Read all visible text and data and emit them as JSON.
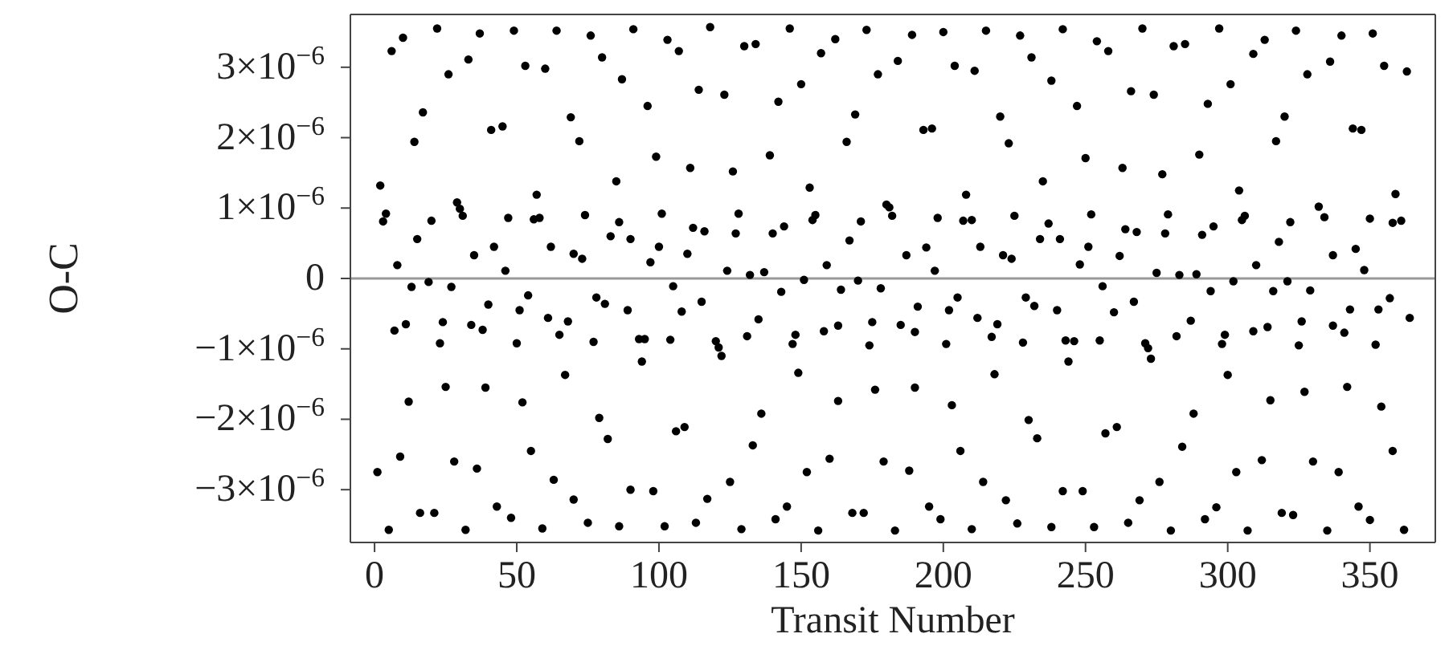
{
  "chart_data": {
    "type": "scatter",
    "xlabel": "Transit Number",
    "ylabel": "O-C",
    "color": "#000000",
    "marker": "circle",
    "xlim": [
      -8.5,
      373
    ],
    "xticks": [
      0,
      50,
      100,
      150,
      200,
      250,
      300,
      350
    ],
    "ylim": [
      -3.75e-06,
      3.75e-06
    ],
    "yticks": [
      {
        "value": -3e-06,
        "label": "−3×10$^{−6}$"
      },
      {
        "value": -2e-06,
        "label": "−2×10$^{−6}$"
      },
      {
        "value": -1e-06,
        "label": "−1×10$^{−6}$"
      },
      0,
      {
        "value": 1e-06,
        "label": "1×10$^{−6}$"
      },
      {
        "value": 2e-06,
        "label": "2×10$^{−6}$"
      },
      {
        "value": 3e-06,
        "label": "3×10$^{−6}$"
      }
    ],
    "ref_lines": [
      {
        "axis": "y",
        "value": 0,
        "color": "#999999"
      }
    ],
    "x": [
      22,
      37,
      49,
      64,
      76,
      91,
      103,
      107,
      118,
      10,
      6,
      33,
      26,
      53,
      60,
      80,
      87,
      114,
      96,
      17,
      14,
      41,
      45,
      69,
      72,
      99,
      111,
      2,
      85,
      57,
      4,
      3,
      29,
      30,
      31,
      20,
      47,
      56,
      58,
      74,
      86,
      101,
      112,
      116,
      15,
      42,
      62,
      83,
      90,
      100,
      110,
      35,
      70,
      73,
      97,
      8,
      46,
      13,
      19,
      27,
      54,
      78,
      81,
      89,
      105,
      115,
      40,
      51,
      108,
      7,
      11,
      24,
      34,
      38,
      61,
      68,
      65,
      23,
      50,
      77,
      93,
      95,
      104,
      94,
      67,
      25,
      39,
      12,
      52,
      79,
      82,
      106,
      109,
      9,
      55,
      1,
      28,
      36,
      63,
      90,
      98,
      117,
      70,
      43,
      16,
      21,
      48,
      5,
      32,
      59,
      75,
      86,
      102,
      113,
      146,
      130,
      134,
      162,
      157,
      173,
      189,
      200,
      215,
      227,
      242,
      231,
      184,
      177,
      204,
      211,
      238,
      150,
      123,
      142,
      169,
      193,
      196,
      220,
      166,
      223,
      139,
      126,
      235,
      153,
      208,
      180,
      181,
      182,
      128,
      155,
      154,
      171,
      198,
      207,
      210,
      225,
      237,
      127,
      140,
      144,
      167,
      187,
      194,
      213,
      221,
      224,
      234,
      241,
      159,
      124,
      132,
      137,
      197,
      151,
      170,
      143,
      164,
      178,
      205,
      191,
      202,
      229,
      232,
      240,
      135,
      163,
      175,
      185,
      212,
      219,
      131,
      148,
      158,
      190,
      217,
      120,
      121,
      122,
      147,
      174,
      201,
      228,
      243,
      244,
      149,
      176,
      190,
      218,
      163,
      203,
      136,
      230,
      233,
      133,
      206,
      160,
      179,
      152,
      188,
      214,
      125,
      242,
      222,
      145,
      195,
      168,
      172,
      141,
      199,
      129,
      156,
      183,
      210,
      226,
      238,
      254,
      258,
      270,
      281,
      285,
      297,
      313,
      309,
      324,
      340,
      351,
      355,
      363,
      336,
      328,
      301,
      266,
      274,
      247,
      293,
      320,
      317,
      344,
      347,
      290,
      250,
      263,
      277,
      304,
      359,
      332,
      334,
      306,
      305,
      322,
      350,
      358,
      361,
      252,
      279,
      264,
      268,
      278,
      291,
      295,
      318,
      251,
      262,
      248,
      310,
      337,
      345,
      348,
      275,
      283,
      289,
      256,
      294,
      302,
      321,
      316,
      329,
      267,
      260,
      287,
      282,
      271,
      272,
      273,
      255,
      246,
      299,
      298,
      309,
      314,
      326,
      325,
      337,
      341,
      343,
      353,
      357,
      364,
      352,
      300,
      315,
      327,
      342,
      354,
      288,
      257,
      261,
      358,
      284,
      312,
      330,
      339,
      303,
      276,
      249,
      269,
      296,
      346,
      319,
      323,
      265,
      292,
      350,
      253,
      280,
      307,
      335,
      362
    ],
    "values": [
      3.55e-06,
      3.48e-06,
      3.52e-06,
      3.52e-06,
      3.45e-06,
      3.54e-06,
      3.39e-06,
      3.23e-06,
      3.57e-06,
      3.42e-06,
      3.23e-06,
      3.11e-06,
      2.9e-06,
      3.02e-06,
      2.98e-06,
      3.14e-06,
      2.83e-06,
      2.68e-06,
      2.45e-06,
      2.36e-06,
      1.94e-06,
      2.11e-06,
      2.16e-06,
      2.29e-06,
      1.95e-06,
      1.73e-06,
      1.57e-06,
      1.32e-06,
      1.38e-06,
      1.19e-06,
      9.2e-07,
      8.1e-07,
      1.08e-06,
      9.9e-07,
      8.9e-07,
      8.2e-07,
      8.6e-07,
      8.4e-07,
      8.6e-07,
      9e-07,
      8e-07,
      9.2e-07,
      7.2e-07,
      6.7e-07,
      5.6e-07,
      4.5e-07,
      4.5e-07,
      6e-07,
      5.6e-07,
      4.5e-07,
      3.5e-07,
      3.3e-07,
      3.5e-07,
      2.8e-07,
      2.3e-07,
      1.9e-07,
      1.1e-07,
      -1.2e-07,
      -5e-08,
      -1.2e-07,
      -2.4e-07,
      -2.7e-07,
      -3.6e-07,
      -4.5e-07,
      -1.1e-07,
      -3.3e-07,
      -3.7e-07,
      -4.5e-07,
      -4.7e-07,
      -7.4e-07,
      -6.5e-07,
      -6.2e-07,
      -6.6e-07,
      -7.3e-07,
      -5.6e-07,
      -6.1e-07,
      -8e-07,
      -9.2e-07,
      -9.2e-07,
      -9e-07,
      -8.6e-07,
      -8.6e-07,
      -8.7e-07,
      -1.18e-06,
      -1.37e-06,
      -1.54e-06,
      -1.55e-06,
      -1.75e-06,
      -1.76e-06,
      -1.98e-06,
      -2.28e-06,
      -2.17e-06,
      -2.11e-06,
      -2.53e-06,
      -2.45e-06,
      -2.75e-06,
      -2.6e-06,
      -2.7e-06,
      -2.86e-06,
      -3e-06,
      -3.02e-06,
      -3.13e-06,
      -3.14e-06,
      -3.24e-06,
      -3.33e-06,
      -3.33e-06,
      -3.4e-06,
      -3.57e-06,
      -3.57e-06,
      -3.55e-06,
      -3.47e-06,
      -3.52e-06,
      -3.52e-06,
      -3.47e-06,
      3.55e-06,
      3.3e-06,
      3.33e-06,
      3.4e-06,
      3.2e-06,
      3.53e-06,
      3.46e-06,
      3.5e-06,
      3.52e-06,
      3.45e-06,
      3.54e-06,
      3.14e-06,
      3.09e-06,
      2.9e-06,
      3.02e-06,
      2.95e-06,
      2.81e-06,
      2.76e-06,
      2.61e-06,
      2.51e-06,
      2.33e-06,
      2.11e-06,
      2.13e-06,
      2.3e-06,
      1.94e-06,
      1.92e-06,
      1.75e-06,
      1.52e-06,
      1.38e-06,
      1.29e-06,
      1.19e-06,
      1.05e-06,
      1.01e-06,
      8.9e-07,
      9.2e-07,
      9e-07,
      8.3e-07,
      8.1e-07,
      8.6e-07,
      8.2e-07,
      8.3e-07,
      8.9e-07,
      7.8e-07,
      6.4e-07,
      6.4e-07,
      7.4e-07,
      5.4e-07,
      3.3e-07,
      4.4e-07,
      4.5e-07,
      3.3e-07,
      2.8e-07,
      5.6e-07,
      5.6e-07,
      1.9e-07,
      1.1e-07,
      5e-08,
      9e-08,
      1.1e-07,
      -2e-08,
      -3e-08,
      -1.9e-07,
      -1.6e-07,
      -1.4e-07,
      -2.7e-07,
      -4e-07,
      -4.5e-07,
      -2.7e-07,
      -3.9e-07,
      -4.5e-07,
      -5.8e-07,
      -6.7e-07,
      -6.2e-07,
      -6.6e-07,
      -5.6e-07,
      -6.5e-07,
      -8.2e-07,
      -8e-07,
      -7.5e-07,
      -7.6e-07,
      -8.3e-07,
      -8.9e-07,
      -9.8e-07,
      -1.1e-06,
      -9.3e-07,
      -9.5e-07,
      -9.3e-07,
      -9.1e-07,
      -8.8e-07,
      -1.18e-06,
      -1.34e-06,
      -1.58e-06,
      -1.55e-06,
      -1.36e-06,
      -1.74e-06,
      -1.8e-06,
      -1.92e-06,
      -2.01e-06,
      -2.27e-06,
      -2.37e-06,
      -2.45e-06,
      -2.56e-06,
      -2.6e-06,
      -2.75e-06,
      -2.73e-06,
      -2.89e-06,
      -2.89e-06,
      -3.02e-06,
      -3.15e-06,
      -3.24e-06,
      -3.24e-06,
      -3.33e-06,
      -3.33e-06,
      -3.42e-06,
      -3.42e-06,
      -3.56e-06,
      -3.58e-06,
      -3.58e-06,
      -3.56e-06,
      -3.48e-06,
      -3.53e-06,
      3.37e-06,
      3.23e-06,
      3.55e-06,
      3.3e-06,
      3.33e-06,
      3.55e-06,
      3.39e-06,
      3.19e-06,
      3.52e-06,
      3.45e-06,
      3.48e-06,
      3.02e-06,
      2.94e-06,
      3.08e-06,
      2.9e-06,
      2.76e-06,
      2.66e-06,
      2.61e-06,
      2.45e-06,
      2.48e-06,
      2.3e-06,
      1.95e-06,
      2.13e-06,
      2.11e-06,
      1.76e-06,
      1.71e-06,
      1.57e-06,
      1.48e-06,
      1.25e-06,
      1.2e-06,
      1.02e-06,
      8.7e-07,
      8.9e-07,
      8.3e-07,
      8e-07,
      8.5e-07,
      7.9e-07,
      8.2e-07,
      9.1e-07,
      9.1e-07,
      7e-07,
      6.6e-07,
      6.4e-07,
      6.2e-07,
      7.4e-07,
      5.2e-07,
      4.5e-07,
      3.2e-07,
      2e-07,
      1.9e-07,
      3.3e-07,
      4.2e-07,
      1.2e-07,
      8e-08,
      5e-08,
      6e-08,
      -1.1e-07,
      -1.8e-07,
      -4e-08,
      -4e-08,
      -1.8e-07,
      -1.7e-07,
      -3.3e-07,
      -4.8e-07,
      -6e-07,
      -8.2e-07,
      -9.2e-07,
      -9.9e-07,
      -1.14e-06,
      -8.8e-07,
      -8.9e-07,
      -8e-07,
      -9.3e-07,
      -7.5e-07,
      -6.9e-07,
      -6.1e-07,
      -9.5e-07,
      -6.7e-07,
      -7.7e-07,
      -4.4e-07,
      -4.4e-07,
      -2.8e-07,
      -5.6e-07,
      -9.4e-07,
      -1.37e-06,
      -1.73e-06,
      -1.61e-06,
      -1.54e-06,
      -1.82e-06,
      -1.92e-06,
      -2.2e-06,
      -2.11e-06,
      -2.45e-06,
      -2.39e-06,
      -2.58e-06,
      -2.6e-06,
      -2.75e-06,
      -2.75e-06,
      -2.89e-06,
      -3.02e-06,
      -3.15e-06,
      -3.25e-06,
      -3.24e-06,
      -3.33e-06,
      -3.36e-06,
      -3.47e-06,
      -3.42e-06,
      -3.43e-06,
      -3.53e-06,
      -3.58e-06,
      -3.58e-06,
      -3.58e-06,
      -3.57e-06
    ]
  }
}
